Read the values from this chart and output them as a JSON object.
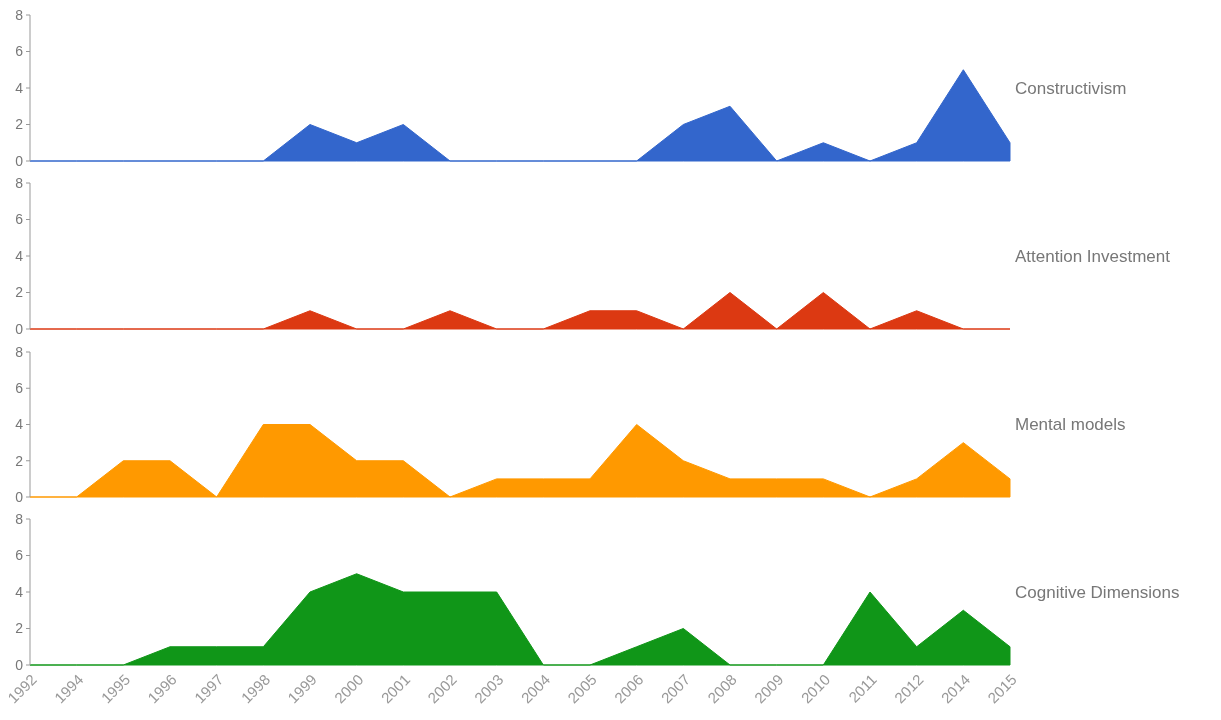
{
  "chart_data": [
    {
      "type": "area",
      "categories": [
        "1992",
        "1994",
        "1995",
        "1996",
        "1997",
        "1998",
        "1999",
        "2000",
        "2001",
        "2002",
        "2003",
        "2004",
        "2005",
        "2006",
        "2007",
        "2008",
        "2009",
        "2010",
        "2011",
        "2012",
        "2014",
        "2015"
      ],
      "series": [
        {
          "name": "Constructivism",
          "color": "#3366cc",
          "values": [
            0,
            0,
            0,
            0,
            0,
            0,
            2,
            1,
            2,
            0,
            0,
            0,
            0,
            0,
            2,
            3,
            0,
            1,
            0,
            1,
            5,
            1
          ]
        }
      ],
      "ylim": [
        0,
        8
      ],
      "yticks": [
        0,
        2,
        4,
        6,
        8
      ],
      "tick_labels": "y",
      "legend": false
    },
    {
      "type": "area",
      "categories": [
        "1992",
        "1994",
        "1995",
        "1996",
        "1997",
        "1998",
        "1999",
        "2000",
        "2001",
        "2002",
        "2003",
        "2004",
        "2005",
        "2006",
        "2007",
        "2008",
        "2009",
        "2010",
        "2011",
        "2012",
        "2014",
        "2015"
      ],
      "series": [
        {
          "name": "Attention Investment",
          "color": "#dc3912",
          "values": [
            0,
            0,
            0,
            0,
            0,
            0,
            1,
            0,
            0,
            1,
            0,
            0,
            1,
            1,
            0,
            2,
            0,
            2,
            0,
            1,
            0,
            0
          ]
        }
      ],
      "ylim": [
        0,
        8
      ],
      "yticks": [
        0,
        2,
        4,
        6,
        8
      ],
      "tick_labels": "y",
      "legend": false
    },
    {
      "type": "area",
      "categories": [
        "1992",
        "1994",
        "1995",
        "1996",
        "1997",
        "1998",
        "1999",
        "2000",
        "2001",
        "2002",
        "2003",
        "2004",
        "2005",
        "2006",
        "2007",
        "2008",
        "2009",
        "2010",
        "2011",
        "2012",
        "2014",
        "2015"
      ],
      "series": [
        {
          "name": "Mental models",
          "color": "#ff9900",
          "values": [
            0,
            0,
            2,
            2,
            0,
            4,
            4,
            2,
            2,
            0,
            1,
            1,
            1,
            4,
            2,
            1,
            1,
            1,
            0,
            1,
            3,
            1
          ]
        }
      ],
      "ylim": [
        0,
        8
      ],
      "yticks": [
        0,
        2,
        4,
        6,
        8
      ],
      "tick_labels": "y",
      "legend": false
    },
    {
      "type": "area",
      "categories": [
        "1992",
        "1994",
        "1995",
        "1996",
        "1997",
        "1998",
        "1999",
        "2000",
        "2001",
        "2002",
        "2003",
        "2004",
        "2005",
        "2006",
        "2007",
        "2008",
        "2009",
        "2010",
        "2011",
        "2012",
        "2014",
        "2015"
      ],
      "series": [
        {
          "name": "Cognitive Dimensions",
          "color": "#109618",
          "values": [
            0,
            0,
            0,
            1,
            1,
            1,
            4,
            5,
            4,
            4,
            4,
            0,
            0,
            1,
            2,
            0,
            0,
            0,
            4,
            1,
            3,
            1
          ]
        }
      ],
      "ylim": [
        0,
        8
      ],
      "yticks": [
        0,
        2,
        4,
        6,
        8
      ],
      "legend": false
    }
  ]
}
